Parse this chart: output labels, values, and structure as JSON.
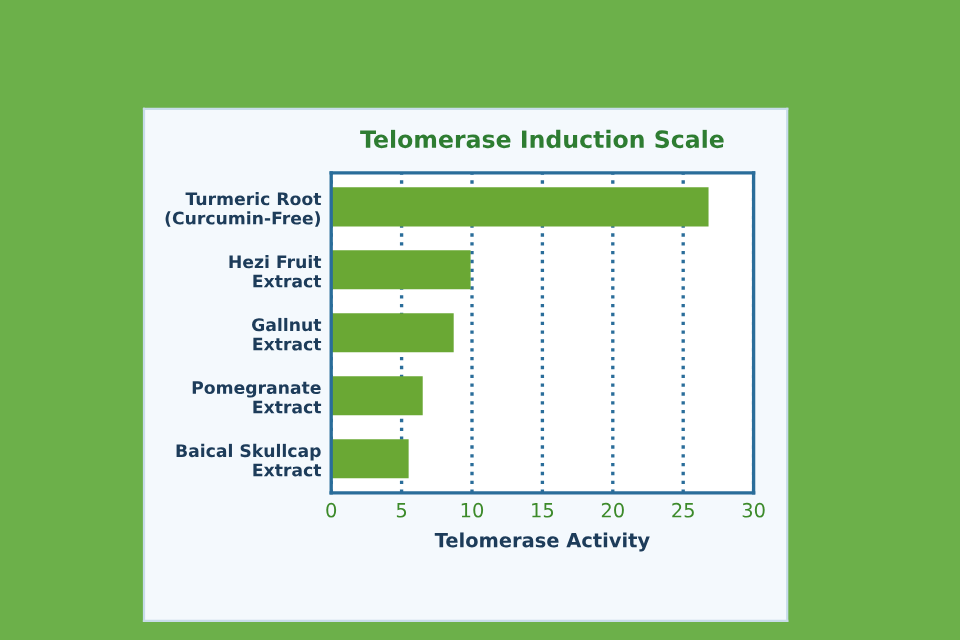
{
  "chart_data": {
    "type": "bar",
    "orientation": "horizontal",
    "title": "Telomerase Induction Scale",
    "xlabel": "Telomerase Activity",
    "categories": [
      "Turmeric Root\n(Curcumin-Free)",
      "Hezi Fruit\nExtract",
      "Gallnut\nExtract",
      "Pomegranate\nExtract",
      "Baical Skullcap\nExtract"
    ],
    "values": [
      26.8,
      9.9,
      8.7,
      6.5,
      5.5
    ],
    "color": "#6aa834",
    "xlim": [
      0,
      30
    ],
    "xticks": [
      0,
      5,
      10,
      15,
      20,
      25,
      30
    ],
    "grid": "x",
    "line_style": "dotted"
  }
}
